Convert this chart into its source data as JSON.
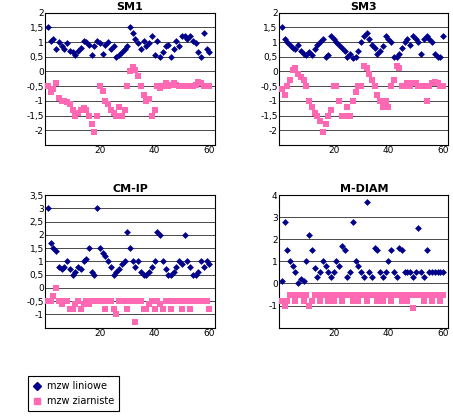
{
  "subplots": [
    {
      "title": "SM1",
      "ylim": [
        -2.5,
        2.0
      ],
      "yticks": [
        -2.0,
        -1.5,
        -1.0,
        -0.5,
        0.0,
        0.5,
        1.0,
        1.5,
        2.0
      ],
      "ytick_labels": [
        "-2",
        "-1,5",
        "-1",
        "-0,5",
        "0",
        "0,5",
        "1",
        "1,5",
        "2"
      ],
      "xlim": [
        0,
        62
      ],
      "xticks": [
        20,
        40,
        60
      ],
      "blue_x": [
        1,
        2,
        3,
        4,
        5,
        6,
        7,
        8,
        9,
        10,
        11,
        12,
        13,
        14,
        15,
        16,
        17,
        18,
        19,
        20,
        21,
        22,
        23,
        24,
        25,
        26,
        27,
        28,
        29,
        30,
        31,
        32,
        33,
        34,
        35,
        36,
        37,
        38,
        39,
        40,
        41,
        42,
        43,
        44,
        45,
        46,
        47,
        48,
        49,
        50,
        51,
        52,
        53,
        54,
        55,
        56,
        57,
        58,
        59,
        60
      ],
      "blue_y": [
        1.5,
        1.05,
        1.1,
        0.75,
        1.0,
        0.85,
        0.75,
        0.95,
        0.7,
        0.65,
        0.55,
        0.7,
        0.8,
        1.05,
        1.0,
        0.9,
        0.55,
        0.85,
        1.05,
        0.95,
        0.6,
        0.9,
        1.0,
        0.75,
        0.85,
        0.5,
        0.55,
        0.65,
        0.75,
        0.85,
        1.5,
        1.3,
        1.1,
        0.95,
        0.75,
        1.05,
        0.85,
        0.95,
        1.2,
        0.55,
        1.05,
        0.5,
        0.65,
        0.85,
        0.9,
        0.5,
        0.75,
        1.05,
        0.85,
        1.2,
        1.2,
        1.1,
        1.2,
        1.05,
        0.95,
        0.65,
        0.5,
        1.3,
        0.75,
        0.65
      ],
      "pink_x": [
        1,
        2,
        3,
        4,
        5,
        6,
        7,
        8,
        9,
        10,
        11,
        12,
        13,
        14,
        15,
        16,
        17,
        18,
        19,
        20,
        21,
        22,
        23,
        24,
        25,
        26,
        27,
        28,
        29,
        30,
        31,
        32,
        33,
        34,
        35,
        36,
        37,
        38,
        39,
        40,
        41,
        42,
        43,
        44,
        45,
        46,
        47,
        48,
        49,
        50,
        51,
        52,
        53,
        54,
        55,
        56,
        57,
        58,
        59,
        60
      ],
      "pink_y": [
        -0.5,
        -0.7,
        -0.6,
        -0.4,
        -0.9,
        -1.0,
        -1.0,
        -1.05,
        -1.1,
        -1.3,
        -1.5,
        -1.4,
        -1.3,
        -1.25,
        -1.3,
        -1.5,
        -1.8,
        -2.05,
        -1.5,
        -0.5,
        -0.65,
        -1.0,
        -1.1,
        -1.3,
        -1.4,
        -1.5,
        -1.2,
        -1.5,
        -1.3,
        -0.5,
        0.0,
        0.15,
        0.05,
        -0.15,
        -0.5,
        -0.8,
        -1.0,
        -0.95,
        -1.5,
        -1.3,
        -0.5,
        -0.55,
        -0.5,
        -0.4,
        -0.5,
        -0.45,
        -0.4,
        -0.45,
        -0.5,
        -0.5,
        -0.5,
        -0.5,
        -0.5,
        -0.5,
        -0.45,
        -0.35,
        -0.4,
        -0.5,
        -0.5,
        -0.5
      ]
    },
    {
      "title": "SM3",
      "ylim": [
        -2.5,
        2.0
      ],
      "yticks": [
        -2.0,
        -1.5,
        -1.0,
        -0.5,
        0.0,
        0.5,
        1.0,
        1.5,
        2.0
      ],
      "ytick_labels": [
        "-2",
        "-1,5",
        "-1",
        "-0,5",
        "0",
        "0,5",
        "1",
        "1,5",
        "2"
      ],
      "xlim": [
        0,
        62
      ],
      "xticks": [
        20,
        40,
        60
      ],
      "blue_x": [
        1,
        2,
        3,
        4,
        5,
        6,
        7,
        8,
        9,
        10,
        11,
        12,
        13,
        14,
        15,
        16,
        17,
        18,
        19,
        20,
        21,
        22,
        23,
        24,
        25,
        26,
        27,
        28,
        29,
        30,
        31,
        32,
        33,
        34,
        35,
        36,
        37,
        38,
        39,
        40,
        41,
        42,
        43,
        44,
        45,
        46,
        47,
        48,
        49,
        50,
        51,
        52,
        53,
        54,
        55,
        56,
        57,
        58,
        59,
        60
      ],
      "blue_y": [
        1.5,
        1.1,
        1.0,
        0.9,
        0.8,
        0.75,
        0.9,
        0.7,
        0.6,
        0.55,
        0.65,
        0.55,
        0.75,
        0.9,
        1.0,
        1.1,
        0.5,
        0.55,
        1.2,
        1.1,
        1.0,
        0.9,
        0.8,
        0.7,
        0.5,
        0.6,
        0.45,
        0.5,
        0.7,
        1.0,
        1.2,
        1.3,
        1.1,
        0.9,
        0.8,
        0.6,
        0.7,
        0.85,
        1.2,
        1.1,
        1.0,
        0.5,
        0.5,
        0.6,
        0.8,
        1.0,
        1.1,
        0.9,
        1.2,
        1.1,
        1.0,
        0.6,
        1.1,
        1.2,
        1.1,
        1.0,
        0.6,
        0.5,
        0.5,
        1.2
      ],
      "pink_x": [
        1,
        2,
        3,
        4,
        5,
        6,
        7,
        8,
        9,
        10,
        11,
        12,
        13,
        14,
        15,
        16,
        17,
        18,
        19,
        20,
        21,
        22,
        23,
        24,
        25,
        26,
        27,
        28,
        29,
        30,
        31,
        32,
        33,
        34,
        35,
        36,
        37,
        38,
        39,
        40,
        41,
        42,
        43,
        44,
        45,
        46,
        47,
        48,
        49,
        50,
        51,
        52,
        53,
        54,
        55,
        56,
        57,
        58,
        59,
        60
      ],
      "pink_y": [
        -0.6,
        -0.8,
        -0.5,
        -0.3,
        0.05,
        0.1,
        -0.1,
        -0.2,
        -0.3,
        -0.5,
        -1.0,
        -1.2,
        -1.4,
        -1.5,
        -1.7,
        -2.05,
        -1.8,
        -1.5,
        -1.3,
        -0.5,
        -0.5,
        -1.0,
        -1.5,
        -1.5,
        -1.2,
        -1.5,
        -1.0,
        -0.7,
        -0.5,
        -0.5,
        0.2,
        0.1,
        -0.1,
        -0.3,
        -0.5,
        -0.8,
        -1.0,
        -1.2,
        -1.0,
        -1.2,
        -0.5,
        -0.3,
        0.2,
        0.1,
        -0.5,
        -0.5,
        -0.4,
        -0.5,
        -0.4,
        -0.4,
        -0.5,
        -0.5,
        -0.5,
        -1.0,
        -0.5,
        -0.4,
        -0.35,
        -0.4,
        -0.5,
        -0.5
      ]
    },
    {
      "title": "CM-IP",
      "ylim": [
        -1.5,
        3.5
      ],
      "yticks": [
        -1.0,
        -0.5,
        0.0,
        0.5,
        1.0,
        1.5,
        2.0,
        2.5,
        3.0,
        3.5
      ],
      "ytick_labels": [
        "-1",
        "-0,5",
        "0",
        "0,5",
        "1",
        "1,5",
        "2",
        "2,5",
        "3",
        "3,5"
      ],
      "xlim": [
        0,
        62
      ],
      "xticks": [
        20,
        40,
        60
      ],
      "blue_x": [
        1,
        2,
        3,
        4,
        5,
        6,
        7,
        8,
        9,
        10,
        11,
        12,
        13,
        14,
        15,
        16,
        17,
        18,
        19,
        20,
        21,
        22,
        23,
        24,
        25,
        26,
        27,
        28,
        29,
        30,
        31,
        32,
        33,
        34,
        35,
        36,
        37,
        38,
        39,
        40,
        41,
        42,
        43,
        44,
        45,
        46,
        47,
        48,
        49,
        50,
        51,
        52,
        53,
        54,
        55,
        56,
        57,
        58,
        59,
        60
      ],
      "blue_y": [
        3.0,
        1.7,
        1.5,
        1.4,
        0.8,
        0.7,
        0.8,
        1.0,
        0.7,
        0.5,
        0.6,
        0.8,
        0.7,
        1.0,
        1.1,
        1.5,
        0.6,
        0.5,
        3.0,
        1.5,
        1.3,
        1.2,
        1.0,
        0.8,
        0.5,
        0.6,
        0.7,
        0.9,
        1.0,
        2.1,
        1.5,
        1.0,
        0.8,
        1.0,
        0.6,
        0.5,
        0.5,
        0.6,
        0.8,
        1.0,
        2.1,
        2.0,
        1.0,
        0.7,
        0.5,
        0.5,
        0.6,
        0.8,
        1.0,
        0.9,
        2.0,
        1.0,
        0.8,
        0.5,
        0.5,
        0.6,
        1.0,
        0.8,
        1.0,
        0.9
      ],
      "pink_x": [
        1,
        2,
        3,
        4,
        5,
        6,
        7,
        8,
        9,
        10,
        11,
        12,
        13,
        14,
        15,
        16,
        17,
        18,
        19,
        20,
        21,
        22,
        23,
        24,
        25,
        26,
        27,
        28,
        29,
        30,
        31,
        32,
        33,
        34,
        35,
        36,
        37,
        38,
        39,
        40,
        41,
        42,
        43,
        44,
        45,
        46,
        47,
        48,
        49,
        50,
        51,
        52,
        53,
        54,
        55,
        56,
        57,
        58,
        59,
        60
      ],
      "pink_y": [
        -0.5,
        -0.5,
        -0.3,
        0.0,
        -0.5,
        -0.6,
        -0.5,
        -0.5,
        -0.8,
        -0.8,
        -0.6,
        -0.5,
        -0.8,
        -0.6,
        -0.5,
        -0.6,
        -0.5,
        -0.5,
        -0.5,
        -0.5,
        -0.5,
        -0.8,
        -0.5,
        -0.5,
        -0.8,
        -1.0,
        -0.5,
        -0.5,
        -0.5,
        -0.8,
        -0.5,
        -0.5,
        -1.3,
        -0.5,
        -0.5,
        -0.8,
        -0.8,
        -0.6,
        -0.5,
        -0.8,
        -0.5,
        -0.6,
        -0.8,
        -0.5,
        -0.5,
        -0.8,
        -0.5,
        -0.5,
        -0.5,
        -0.8,
        -0.5,
        -0.5,
        -0.8,
        -0.5,
        -0.5,
        -0.5,
        -0.5,
        -0.5,
        -0.5,
        -0.8
      ]
    },
    {
      "title": "M-DIAM",
      "ylim": [
        -2.0,
        4.0
      ],
      "yticks": [
        -1.0,
        0.0,
        1.0,
        2.0,
        3.0,
        4.0
      ],
      "ytick_labels": [
        "-1",
        "0",
        "1",
        "2",
        "3",
        "4"
      ],
      "xlim": [
        0,
        62
      ],
      "xticks": [
        20,
        40,
        60
      ],
      "blue_x": [
        1,
        2,
        3,
        4,
        5,
        6,
        7,
        8,
        9,
        10,
        11,
        12,
        13,
        14,
        15,
        16,
        17,
        18,
        19,
        20,
        21,
        22,
        23,
        24,
        25,
        26,
        27,
        28,
        29,
        30,
        31,
        32,
        33,
        34,
        35,
        36,
        37,
        38,
        39,
        40,
        41,
        42,
        43,
        44,
        45,
        46,
        47,
        48,
        49,
        50,
        51,
        52,
        53,
        54,
        55,
        56,
        57,
        58,
        59,
        60
      ],
      "blue_y": [
        0.1,
        2.8,
        1.5,
        1.0,
        0.8,
        0.5,
        0.0,
        0.2,
        0.1,
        1.0,
        2.2,
        1.5,
        0.7,
        0.3,
        0.5,
        1.0,
        0.8,
        0.5,
        0.3,
        0.5,
        1.0,
        0.8,
        1.7,
        1.5,
        0.3,
        0.5,
        2.8,
        1.0,
        0.8,
        0.5,
        0.3,
        3.7,
        0.5,
        0.3,
        1.6,
        1.5,
        0.5,
        0.3,
        0.5,
        1.0,
        1.5,
        0.5,
        0.3,
        1.6,
        1.5,
        0.5,
        0.5,
        0.5,
        0.3,
        0.5,
        2.5,
        0.5,
        0.3,
        1.5,
        0.5,
        0.5,
        0.5,
        0.5,
        0.5,
        0.5
      ],
      "pink_x": [
        1,
        2,
        3,
        4,
        5,
        6,
        7,
        8,
        9,
        10,
        11,
        12,
        13,
        14,
        15,
        16,
        17,
        18,
        19,
        20,
        21,
        22,
        23,
        24,
        25,
        26,
        27,
        28,
        29,
        30,
        31,
        32,
        33,
        34,
        35,
        36,
        37,
        38,
        39,
        40,
        41,
        42,
        43,
        44,
        45,
        46,
        47,
        48,
        49,
        50,
        51,
        52,
        53,
        54,
        55,
        56,
        57,
        58,
        59,
        60
      ],
      "pink_y": [
        -0.8,
        -1.0,
        -0.8,
        -0.5,
        -0.5,
        -0.8,
        -0.5,
        -0.5,
        -0.8,
        -0.5,
        -1.0,
        -0.8,
        -0.5,
        -0.5,
        -0.8,
        -0.5,
        -0.5,
        -0.8,
        -0.5,
        -0.8,
        -0.5,
        -0.5,
        -0.8,
        -0.5,
        -0.5,
        -0.5,
        -0.8,
        -0.5,
        -0.8,
        -0.5,
        -0.5,
        -0.8,
        -0.5,
        -0.5,
        -0.5,
        -0.8,
        -0.5,
        -0.8,
        -0.5,
        -0.5,
        -0.8,
        -0.5,
        -0.5,
        -0.5,
        -0.8,
        -0.5,
        -0.8,
        -0.5,
        -1.1,
        -0.5,
        -0.5,
        -0.5,
        -0.8,
        -0.5,
        -0.5,
        -0.8,
        -0.5,
        -0.5,
        -0.8,
        -0.5
      ]
    }
  ],
  "blue_color": "#00008B",
  "pink_color": "#FF69B4",
  "legend_labels": [
    "mzw liniowe",
    "mzw ziarniste"
  ],
  "blue_marker": "D",
  "pink_marker": "s",
  "marker_size_blue": 12,
  "marker_size_pink": 14,
  "font_family": "Arial",
  "title_fontsize": 8,
  "tick_fontsize": 6.5,
  "legend_fontsize": 7
}
